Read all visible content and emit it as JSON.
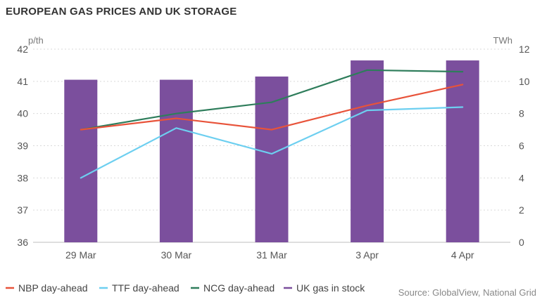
{
  "chart_data": {
    "type": "bar",
    "title": "EUROPEAN GAS PRICES AND UK STORAGE",
    "left_unit": "p/th",
    "right_unit": "TWh",
    "categories": [
      "29 Mar",
      "30 Mar",
      "31 Mar",
      "3 Apr",
      "4 Apr"
    ],
    "y_left": {
      "range": [
        36,
        42
      ],
      "ticks": [
        "36",
        "37",
        "38",
        "39",
        "40",
        "41",
        "42"
      ]
    },
    "y_right": {
      "range": [
        0,
        12
      ],
      "ticks": [
        "0",
        "2",
        "4",
        "6",
        "8",
        "10",
        "12"
      ]
    },
    "grid": true,
    "bars": {
      "name": "UK gas in stock",
      "axis": "right",
      "color": "#7b4f9d",
      "values": [
        10.1,
        10.1,
        10.3,
        11.3,
        11.3
      ]
    },
    "series": [
      {
        "name": "NBP day-ahead",
        "axis": "left",
        "color": "#e8533a",
        "values": [
          39.5,
          39.85,
          39.5,
          40.25,
          40.9
        ]
      },
      {
        "name": "TTF day-ahead",
        "axis": "left",
        "color": "#6dcff0",
        "values": [
          38.0,
          39.55,
          38.75,
          40.1,
          40.2
        ]
      },
      {
        "name": "NCG day-ahead",
        "axis": "left",
        "color": "#2e7d5b",
        "values": [
          39.5,
          40.0,
          40.35,
          41.35,
          41.3
        ]
      }
    ],
    "legend": {
      "position": "bottom",
      "items": [
        "NBP day-ahead",
        "TTF day-ahead",
        "NCG day-ahead",
        "UK gas in stock"
      ]
    },
    "source": "Source: GlobalView, National Grid"
  }
}
